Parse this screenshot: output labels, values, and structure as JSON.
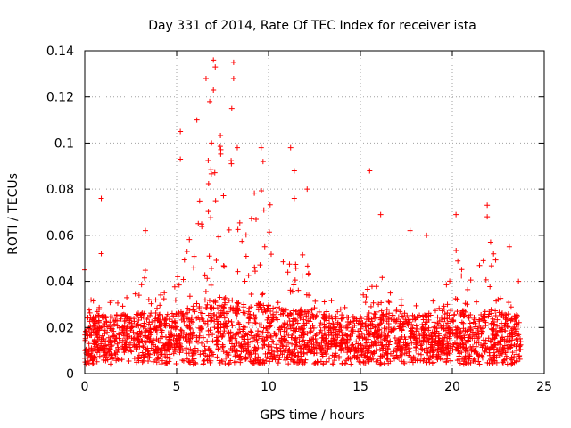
{
  "chart_data": {
    "type": "scatter",
    "title": "Day 331 of 2014, Rate Of TEC Index for receiver ista",
    "xlabel": "GPS time / hours",
    "ylabel": "ROTI / TECUs",
    "xlim": [
      0,
      25
    ],
    "ylim": [
      0,
      0.14
    ],
    "x_ticks": [
      0,
      5,
      10,
      15,
      20,
      25
    ],
    "x_tick_labels": [
      "0",
      "5",
      "10",
      "15",
      "20",
      "25"
    ],
    "y_ticks": [
      0,
      0.02,
      0.04,
      0.06,
      0.08,
      0.1,
      0.12,
      0.14
    ],
    "y_tick_labels": [
      "0",
      "0.02",
      "0.04",
      "0.06",
      "0.08",
      "0.1",
      "0.12",
      "0.14"
    ],
    "grid": true,
    "marker": "+",
    "color": "#ff0000",
    "series": [
      {
        "name": "ROTI",
        "x_range_hours": [
          0,
          23.75
        ],
        "baseline_band": [
          0.003,
          0.03
        ],
        "notable_points": [
          {
            "x": 0.0,
            "y": 0.045
          },
          {
            "x": 0.9,
            "y": 0.076
          },
          {
            "x": 0.9,
            "y": 0.052
          },
          {
            "x": 3.3,
            "y": 0.062
          },
          {
            "x": 5.2,
            "y": 0.105
          },
          {
            "x": 5.2,
            "y": 0.093
          },
          {
            "x": 6.1,
            "y": 0.11
          },
          {
            "x": 6.6,
            "y": 0.128
          },
          {
            "x": 6.8,
            "y": 0.118
          },
          {
            "x": 6.9,
            "y": 0.1
          },
          {
            "x": 7.0,
            "y": 0.136
          },
          {
            "x": 7.1,
            "y": 0.133
          },
          {
            "x": 7.0,
            "y": 0.123
          },
          {
            "x": 8.1,
            "y": 0.135
          },
          {
            "x": 8.1,
            "y": 0.128
          },
          {
            "x": 8.0,
            "y": 0.115
          },
          {
            "x": 8.3,
            "y": 0.098
          },
          {
            "x": 9.6,
            "y": 0.098
          },
          {
            "x": 9.7,
            "y": 0.092
          },
          {
            "x": 11.2,
            "y": 0.098
          },
          {
            "x": 11.4,
            "y": 0.088
          },
          {
            "x": 11.4,
            "y": 0.076
          },
          {
            "x": 12.1,
            "y": 0.08
          },
          {
            "x": 15.5,
            "y": 0.088
          },
          {
            "x": 16.1,
            "y": 0.069
          },
          {
            "x": 17.7,
            "y": 0.062
          },
          {
            "x": 18.6,
            "y": 0.06
          },
          {
            "x": 20.2,
            "y": 0.069
          },
          {
            "x": 21.9,
            "y": 0.073
          },
          {
            "x": 21.9,
            "y": 0.068
          },
          {
            "x": 23.1,
            "y": 0.055
          },
          {
            "x": 23.6,
            "y": 0.04
          }
        ]
      }
    ]
  }
}
